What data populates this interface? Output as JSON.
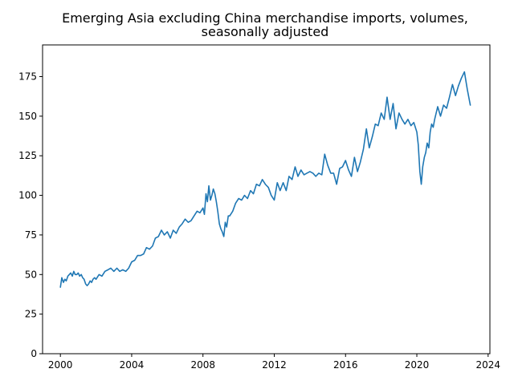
{
  "chart_data": {
    "type": "line",
    "title_lines": [
      "Emerging Asia excluding China merchandise imports, volumes,",
      "seasonally adjusted"
    ],
    "xlabel": "",
    "ylabel": "",
    "xlim": [
      1999.0,
      2024.1
    ],
    "ylim": [
      0,
      195
    ],
    "x_ticks": [
      {
        "value": 2000,
        "label": "2000"
      },
      {
        "value": 2004,
        "label": "2004"
      },
      {
        "value": 2008,
        "label": "2008"
      },
      {
        "value": 2012,
        "label": "2012"
      },
      {
        "value": 2016,
        "label": "2016"
      },
      {
        "value": 2020,
        "label": "2020"
      },
      {
        "value": 2024,
        "label": "2024"
      }
    ],
    "y_ticks": [
      {
        "value": 0,
        "label": "0"
      },
      {
        "value": 25,
        "label": "25"
      },
      {
        "value": 50,
        "label": "50"
      },
      {
        "value": 75,
        "label": "75"
      },
      {
        "value": 100,
        "label": "100"
      },
      {
        "value": 125,
        "label": "125"
      },
      {
        "value": 150,
        "label": "150"
      },
      {
        "value": 175,
        "label": "175"
      }
    ],
    "grid": false,
    "legend": "none",
    "series": [
      {
        "color": "#1f77b4",
        "x": [
          2000.0,
          2000.08,
          2000.17,
          2000.25,
          2000.33,
          2000.42,
          2000.5,
          2000.58,
          2000.67,
          2000.75,
          2000.83,
          2000.92,
          2001.0,
          2001.08,
          2001.17,
          2001.25,
          2001.33,
          2001.42,
          2001.5,
          2001.58,
          2001.67,
          2001.75,
          2001.83,
          2001.92,
          2002.0,
          2002.17,
          2002.33,
          2002.5,
          2002.67,
          2002.83,
          2003.0,
          2003.17,
          2003.33,
          2003.5,
          2003.67,
          2003.83,
          2004.0,
          2004.17,
          2004.33,
          2004.5,
          2004.67,
          2004.83,
          2005.0,
          2005.17,
          2005.33,
          2005.5,
          2005.67,
          2005.83,
          2006.0,
          2006.17,
          2006.33,
          2006.5,
          2006.67,
          2006.83,
          2007.0,
          2007.17,
          2007.33,
          2007.5,
          2007.67,
          2007.83,
          2008.0,
          2008.08,
          2008.17,
          2008.25,
          2008.33,
          2008.42,
          2008.5,
          2008.58,
          2008.67,
          2008.75,
          2008.83,
          2008.92,
          2009.0,
          2009.08,
          2009.17,
          2009.25,
          2009.33,
          2009.42,
          2009.5,
          2009.67,
          2009.83,
          2010.0,
          2010.17,
          2010.33,
          2010.5,
          2010.67,
          2010.83,
          2011.0,
          2011.17,
          2011.33,
          2011.5,
          2011.67,
          2011.83,
          2012.0,
          2012.17,
          2012.33,
          2012.5,
          2012.67,
          2012.83,
          2013.0,
          2013.17,
          2013.33,
          2013.5,
          2013.67,
          2013.83,
          2014.0,
          2014.17,
          2014.33,
          2014.5,
          2014.67,
          2014.83,
          2015.0,
          2015.17,
          2015.33,
          2015.5,
          2015.67,
          2015.83,
          2016.0,
          2016.17,
          2016.33,
          2016.5,
          2016.67,
          2016.83,
          2017.0,
          2017.17,
          2017.33,
          2017.5,
          2017.67,
          2017.83,
          2018.0,
          2018.17,
          2018.33,
          2018.5,
          2018.67,
          2018.83,
          2019.0,
          2019.17,
          2019.33,
          2019.5,
          2019.67,
          2019.83,
          2020.0,
          2020.08,
          2020.17,
          2020.25,
          2020.33,
          2020.42,
          2020.5,
          2020.58,
          2020.67,
          2020.75,
          2020.83,
          2020.92,
          2021.0,
          2021.17,
          2021.33,
          2021.5,
          2021.67,
          2021.83,
          2022.0,
          2022.17,
          2022.33,
          2022.5,
          2022.67,
          2022.83,
          2023.0
        ],
        "y": [
          42,
          48,
          45,
          47,
          46,
          49,
          50,
          51,
          49,
          52,
          50,
          50,
          51,
          49,
          50,
          48,
          47,
          44,
          43,
          44,
          46,
          45,
          47,
          48,
          47,
          50,
          49,
          52,
          53,
          54,
          52,
          54,
          52,
          53,
          52,
          54,
          58,
          59,
          62,
          62,
          63,
          67,
          66,
          68,
          73,
          74,
          78,
          75,
          77,
          73,
          78,
          76,
          80,
          82,
          85,
          83,
          84,
          87,
          90,
          89,
          92,
          88,
          101,
          96,
          106,
          97,
          100,
          104,
          101,
          96,
          90,
          82,
          79,
          77,
          74,
          83,
          80,
          87,
          87,
          90,
          95,
          98,
          97,
          100,
          98,
          103,
          101,
          107,
          106,
          110,
          107,
          105,
          100,
          97,
          108,
          103,
          108,
          103,
          112,
          110,
          118,
          112,
          116,
          113,
          114,
          115,
          114,
          112,
          114,
          113,
          126,
          119,
          114,
          114,
          107,
          117,
          118,
          122,
          116,
          112,
          124,
          115,
          121,
          129,
          142,
          130,
          137,
          145,
          144,
          152,
          148,
          162,
          148,
          158,
          142,
          152,
          148,
          145,
          148,
          144,
          146,
          140,
          132,
          115,
          107,
          118,
          124,
          127,
          133,
          130,
          140,
          145,
          143,
          148,
          156,
          150,
          157,
          155,
          162,
          170,
          163,
          169,
          174,
          178,
          167,
          157
        ]
      }
    ]
  }
}
